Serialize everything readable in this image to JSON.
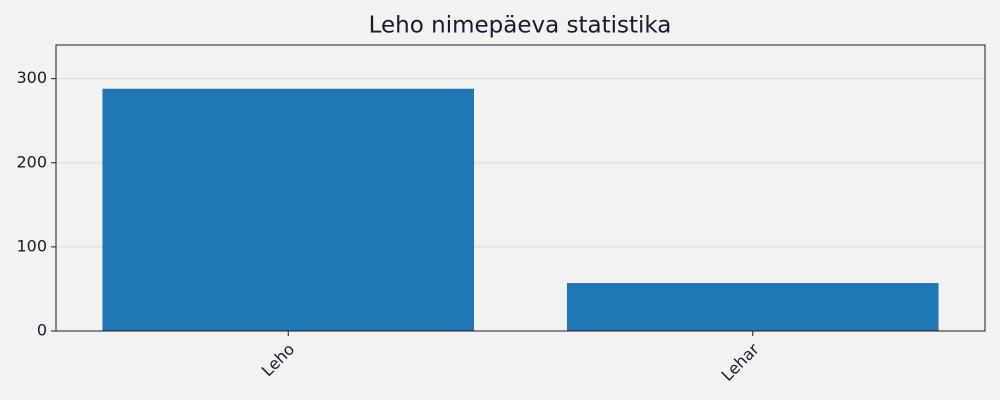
{
  "chart_data": {
    "type": "bar",
    "title": "Leho nimepäeva statistika",
    "categories": [
      "Leho",
      "Lehar"
    ],
    "values": [
      288,
      57
    ],
    "color": "#1f77b4",
    "ylim": [
      0,
      340
    ],
    "yticks": [
      0,
      100,
      200,
      300
    ],
    "grid": true
  }
}
